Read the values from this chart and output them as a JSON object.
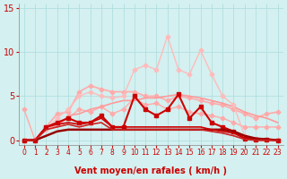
{
  "x": [
    0,
    1,
    2,
    3,
    4,
    5,
    6,
    7,
    8,
    9,
    10,
    11,
    12,
    13,
    14,
    15,
    16,
    17,
    18,
    19,
    20,
    21,
    22,
    23
  ],
  "bg_color": "#d4f0f0",
  "grid_color": "#aadddd",
  "xlabel": "Vent moyen/en rafales ( km/h )",
  "xlabel_color": "#cc0000",
  "tick_color": "#cc0000",
  "ylim": [
    -0.5,
    15.5
  ],
  "xlim": [
    -0.5,
    23.5
  ],
  "yticks": [
    0,
    5,
    10,
    15
  ],
  "lines": [
    {
      "y": [
        3.5,
        0.0,
        1.5,
        1.8,
        2.5,
        3.5,
        3.2,
        3.8,
        3.0,
        3.5,
        4.8,
        4.0,
        4.2,
        3.5,
        3.8,
        3.2,
        3.0,
        2.8,
        2.5,
        2.0,
        1.5,
        1.5,
        1.5,
        1.5
      ],
      "color": "#ffaaaa",
      "linewidth": 1.0,
      "marker": "D",
      "markersize": 2.5,
      "zorder": 2
    },
    {
      "y": [
        0.0,
        0.1,
        1.5,
        3.0,
        3.2,
        5.5,
        6.2,
        5.8,
        5.5,
        5.5,
        5.5,
        5.0,
        5.0,
        4.5,
        5.0,
        4.8,
        4.5,
        4.2,
        4.0,
        3.5,
        3.0,
        2.5,
        3.0,
        3.2
      ],
      "color": "#ffaaaa",
      "linewidth": 1.2,
      "marker": "D",
      "markersize": 2.5,
      "zorder": 2
    },
    {
      "y": [
        0.0,
        0.0,
        1.5,
        1.5,
        2.8,
        3.0,
        3.5,
        3.8,
        4.2,
        4.5,
        4.5,
        4.8,
        4.8,
        5.0,
        5.2,
        5.0,
        4.8,
        4.5,
        4.2,
        3.8,
        3.2,
        2.8,
        2.5,
        2.0
      ],
      "color": "#ff9999",
      "linewidth": 1.2,
      "marker": null,
      "markersize": 0,
      "zorder": 2
    },
    {
      "y": [
        0.0,
        0.0,
        1.2,
        2.5,
        3.5,
        5.0,
        5.5,
        5.0,
        4.8,
        5.0,
        8.0,
        8.5,
        8.0,
        11.8,
        8.0,
        7.5,
        10.2,
        7.5,
        5.0,
        4.0,
        0.5,
        0.2,
        0.1,
        0.1
      ],
      "color": "#ffbbbb",
      "linewidth": 1.0,
      "marker": "D",
      "markersize": 2.5,
      "zorder": 2
    },
    {
      "y": [
        0.0,
        0.0,
        1.5,
        2.0,
        2.5,
        2.0,
        2.0,
        2.8,
        1.5,
        1.5,
        5.0,
        3.5,
        2.8,
        3.5,
        5.2,
        2.5,
        3.8,
        2.0,
        1.5,
        1.0,
        0.2,
        0.1,
        0.1,
        0.0
      ],
      "color": "#cc0000",
      "linewidth": 1.5,
      "marker": "s",
      "markersize": 3.0,
      "zorder": 3
    },
    {
      "y": [
        0.0,
        0.0,
        0.5,
        1.0,
        1.2,
        1.2,
        1.2,
        1.2,
        1.2,
        1.2,
        1.2,
        1.2,
        1.2,
        1.2,
        1.2,
        1.2,
        1.2,
        1.2,
        1.2,
        1.0,
        0.5,
        0.2,
        0.1,
        0.0
      ],
      "color": "#990000",
      "linewidth": 1.8,
      "marker": null,
      "markersize": 0,
      "zorder": 3
    },
    {
      "y": [
        0.0,
        0.0,
        1.5,
        1.8,
        2.0,
        1.8,
        2.0,
        2.5,
        1.5,
        1.5,
        1.5,
        1.5,
        1.5,
        1.5,
        1.5,
        1.5,
        1.5,
        1.2,
        1.0,
        0.8,
        0.2,
        0.0,
        0.0,
        0.0
      ],
      "color": "#cc0000",
      "linewidth": 1.2,
      "marker": null,
      "markersize": 0,
      "zorder": 3
    },
    {
      "y": [
        0.0,
        0.0,
        1.2,
        1.5,
        1.8,
        1.5,
        1.8,
        2.0,
        1.2,
        1.2,
        1.2,
        1.2,
        1.2,
        1.2,
        1.2,
        1.2,
        1.2,
        1.0,
        0.8,
        0.5,
        0.1,
        0.0,
        0.0,
        0.0
      ],
      "color": "#cc2222",
      "linewidth": 1.2,
      "marker": null,
      "markersize": 0,
      "zorder": 3
    }
  ]
}
